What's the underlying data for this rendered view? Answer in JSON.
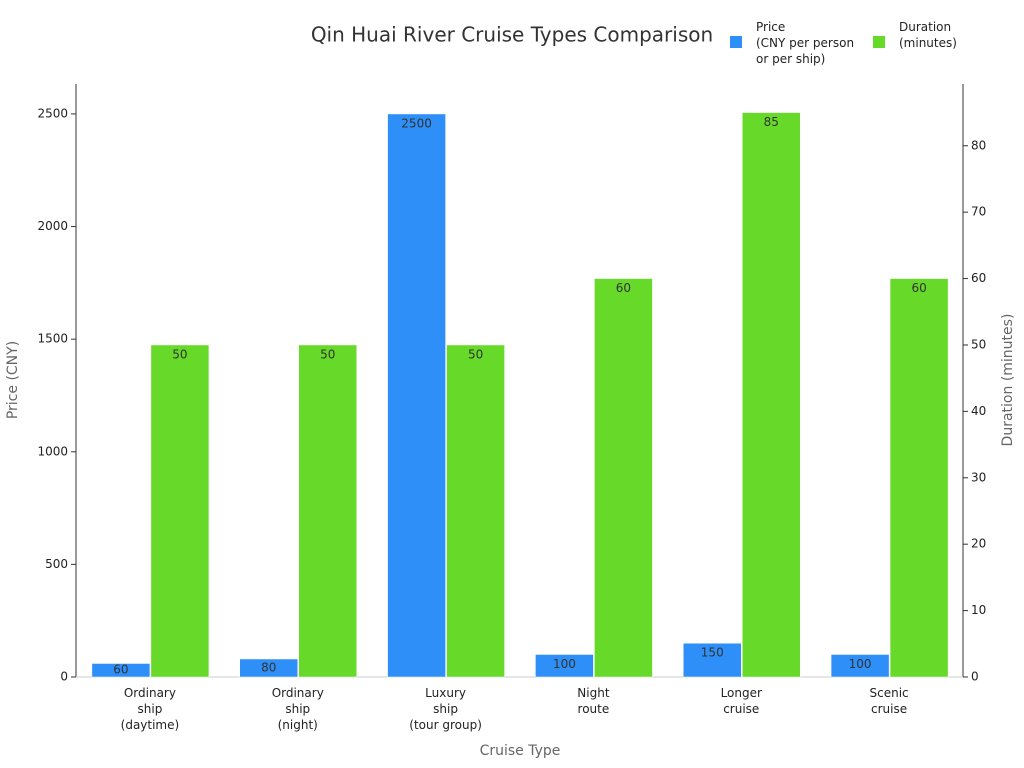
{
  "chart_data": {
    "type": "bar",
    "title": "Qin Huai River Cruise Types Comparison",
    "x_label": "Cruise Type",
    "y_label": "Price (CNY)",
    "y2_label": "Duration (minutes)",
    "categories": [
      "Ordinary\nship\n(daytime)",
      "Ordinary\nship\n(night)",
      "Luxury\nship\n(tour group)",
      "Night\nroute",
      "Longer\ncruise",
      "Scenic\ncruise"
    ],
    "series": [
      {
        "name": "Price\n(CNY per person\nor per ship)",
        "color": "#2d8ff7",
        "values": [
          60,
          80,
          2500,
          100,
          150,
          100
        ]
      },
      {
        "name": "Duration\n(minutes)",
        "color": "#66d929",
        "axis": "y2",
        "values": [
          50,
          50,
          50,
          60,
          85,
          60
        ]
      }
    ],
    "ylim": [
      0,
      2633
    ],
    "yticks": [
      0,
      500,
      1000,
      1500,
      2000,
      2500
    ],
    "y2lim": [
      0,
      89.3
    ],
    "y2ticks": [
      0,
      10,
      20,
      30,
      40,
      50,
      60,
      70,
      80
    ],
    "grid": false,
    "legend": "top-right"
  }
}
